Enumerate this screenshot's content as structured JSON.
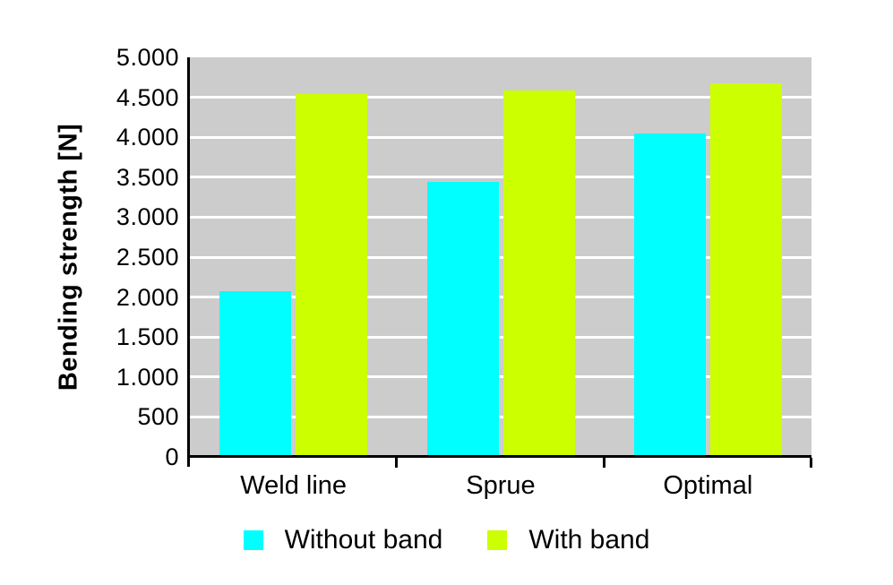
{
  "chart_data": {
    "type": "bar",
    "title": "",
    "xlabel": "",
    "ylabel": "Bending strength [N]",
    "categories": [
      "Weld line",
      "Sprue",
      "Optimal"
    ],
    "series": [
      {
        "name": "Without band",
        "color": "#00FFFF",
        "values": [
          2070,
          3440,
          4050
        ]
      },
      {
        "name": "With band",
        "color": "#CCFF00",
        "values": [
          4540,
          4580,
          4680
        ]
      }
    ],
    "ylim": [
      0,
      5000
    ],
    "ytick_step": 500,
    "ytick_labels": [
      "0",
      "500",
      "1.000",
      "1.500",
      "2.000",
      "2.500",
      "3.000",
      "3.500",
      "4.000",
      "4.500",
      "5.000"
    ],
    "grid": "horizontal",
    "grid_color": "#FFFFFF",
    "plot_bg": "#CCCCCC",
    "axis_color": "#000000",
    "legend_position": "bottom-center"
  }
}
